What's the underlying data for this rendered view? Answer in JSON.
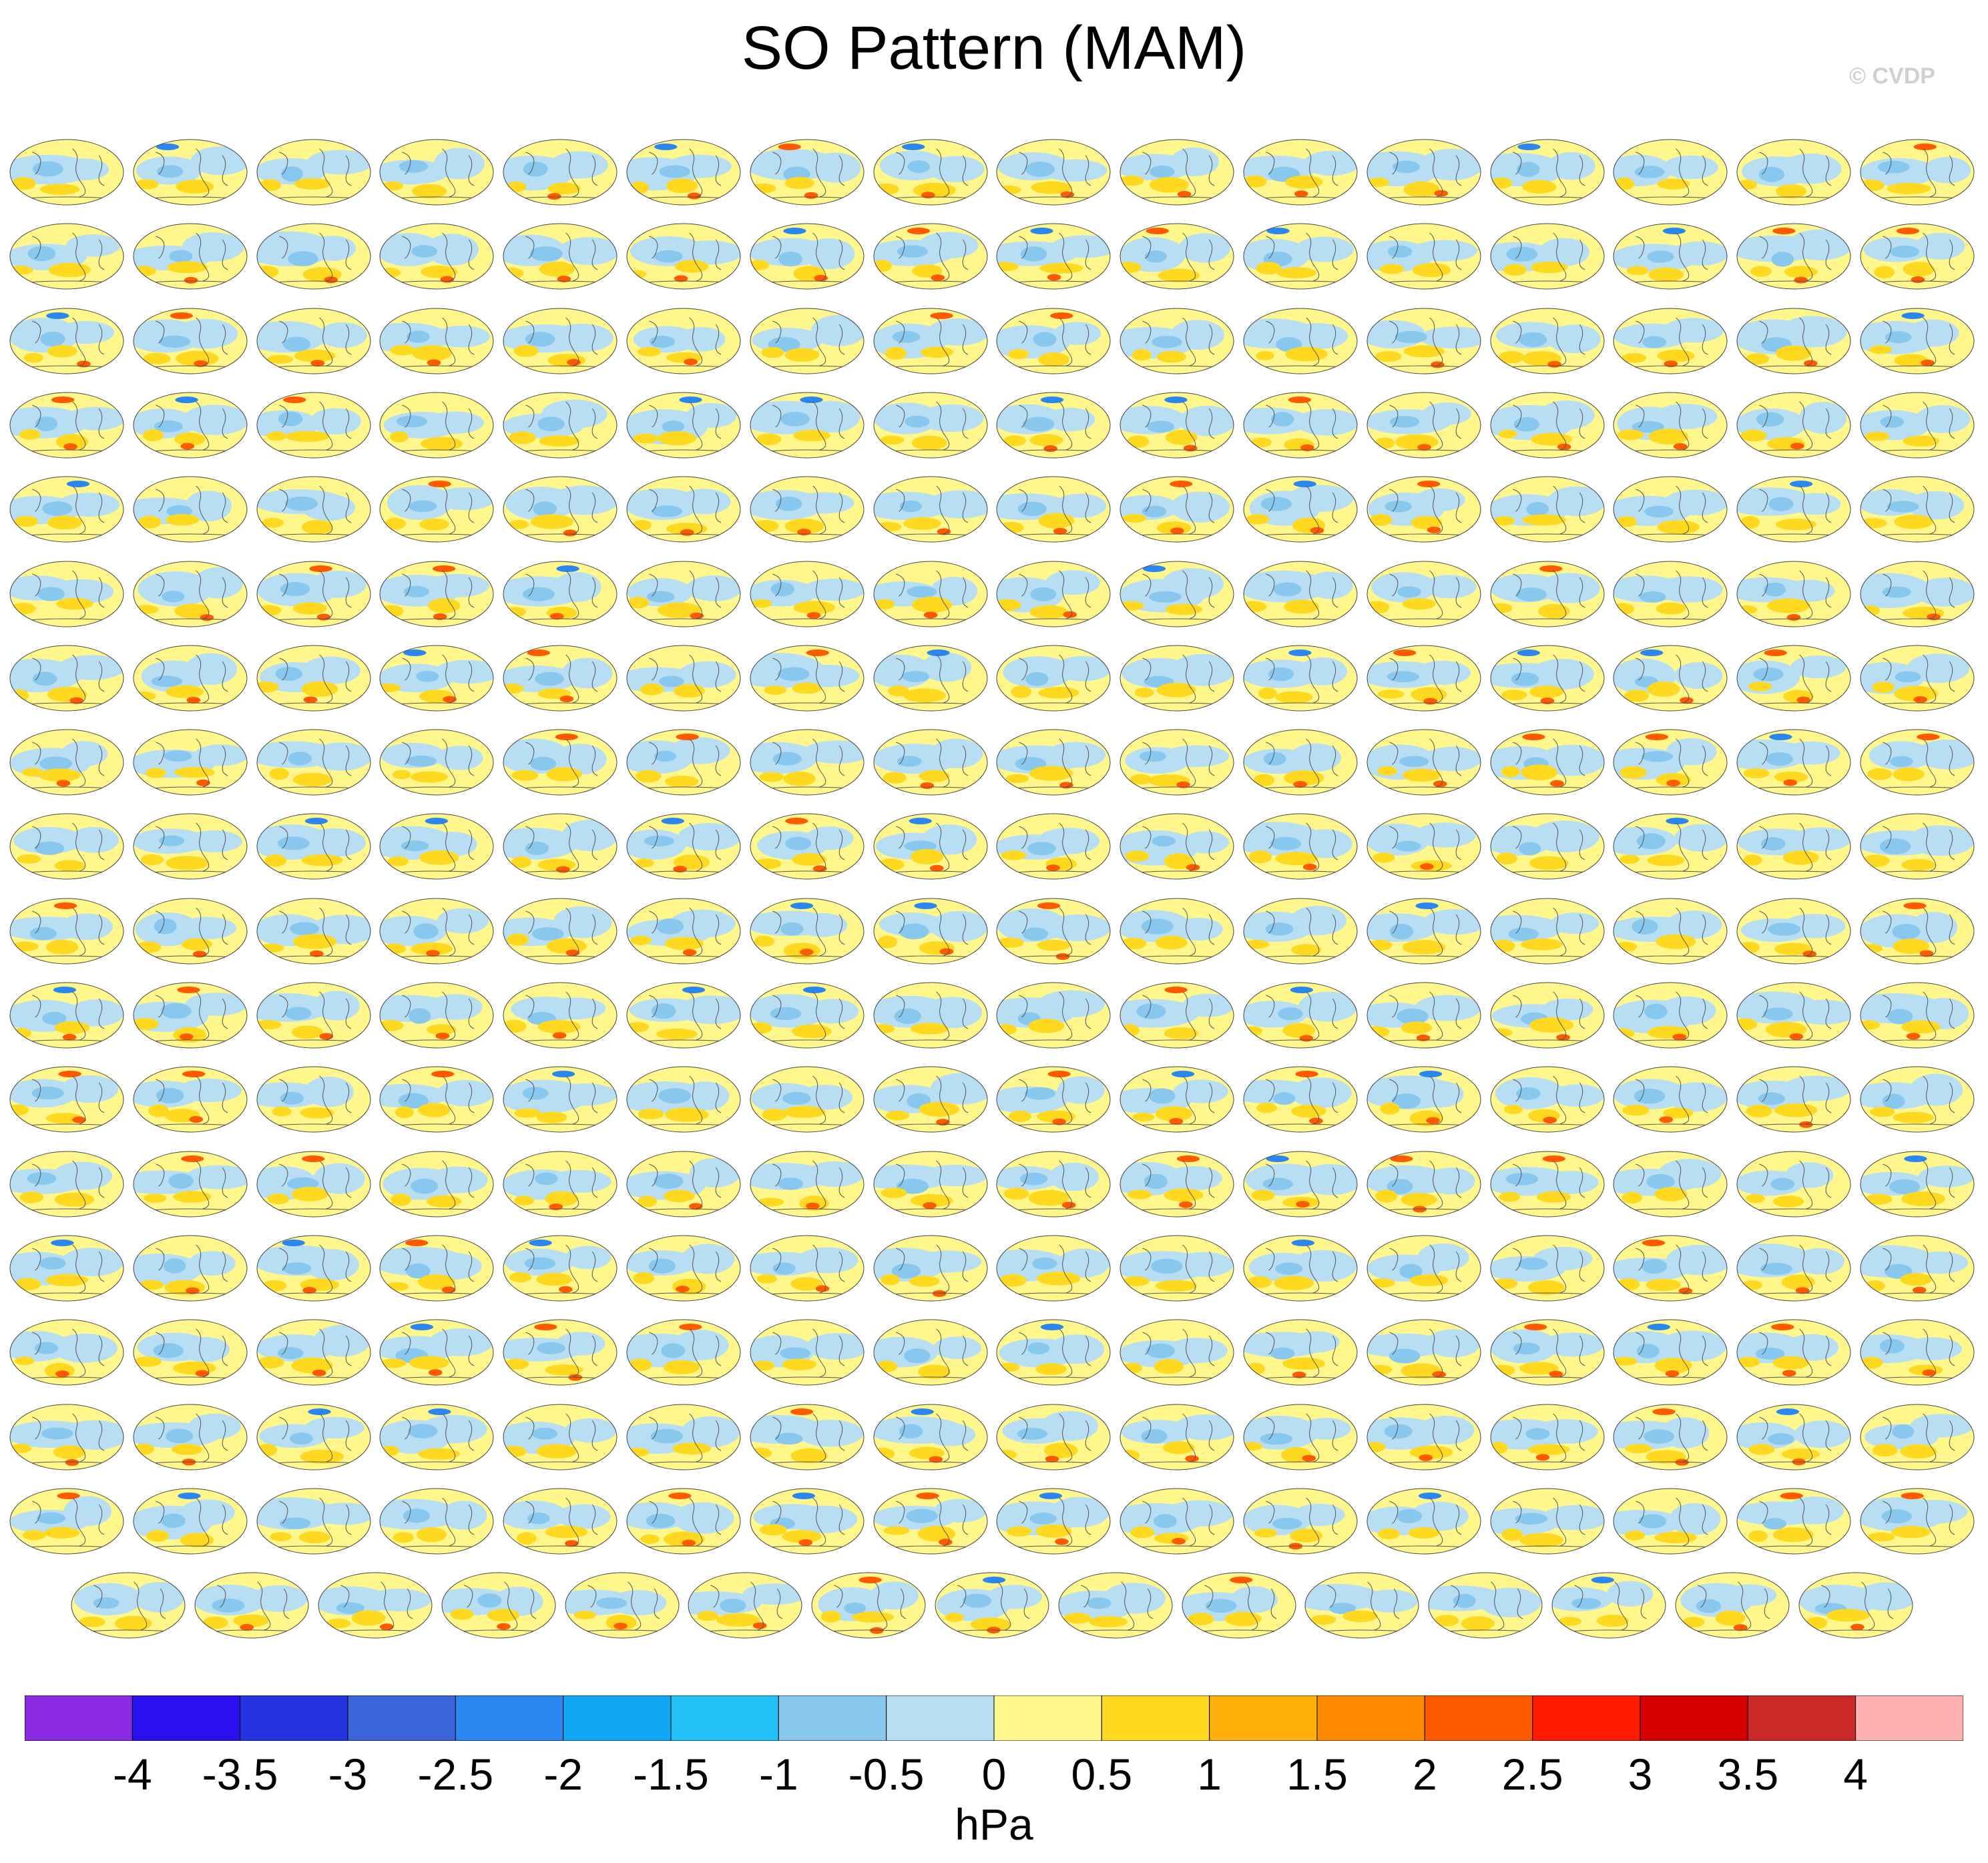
{
  "title": "SO Pattern (MAM)",
  "credit": "© CVDP",
  "units": "hPa",
  "chart_data": {
    "type": "heatmap",
    "title": "SO Pattern (MAM)",
    "projection": "global ellipse (Mollweide-like) maps",
    "panel_grid": {
      "rows_full": 17,
      "columns": 16,
      "last_row_panels": 15
    },
    "colorbar": {
      "levels": [
        -4,
        -3.5,
        -3,
        -2.5,
        -2,
        -1.5,
        -1,
        -0.5,
        0,
        0.5,
        1,
        1.5,
        2,
        2.5,
        3,
        3.5,
        4
      ],
      "colors": [
        "#8a2be2",
        "#2a10ef",
        "#2434e0",
        "#3b66d9",
        "#2a86f0",
        "#10a8f4",
        "#22c2f6",
        "#88c8ee",
        "#b8def4",
        "#fff78c",
        "#ffd820",
        "#ffb00a",
        "#ff8a00",
        "#ff5a00",
        "#ff1a00",
        "#d60000",
        "#cc2828",
        "#ffb0b0"
      ],
      "label": "hPa"
    },
    "colors": {
      "ocean_positive_light": "#fff78c",
      "ocean_negative_light": "#b8def4",
      "negative_medium": "#88c8ee",
      "positive_medium": "#ffd820",
      "positive_strong": "#ff5a00",
      "negative_strong": "#2a86f0",
      "coastline": "#555555",
      "panel_title_blue": "#3f6fd6",
      "panel_title_orange": "#e0a000"
    }
  }
}
